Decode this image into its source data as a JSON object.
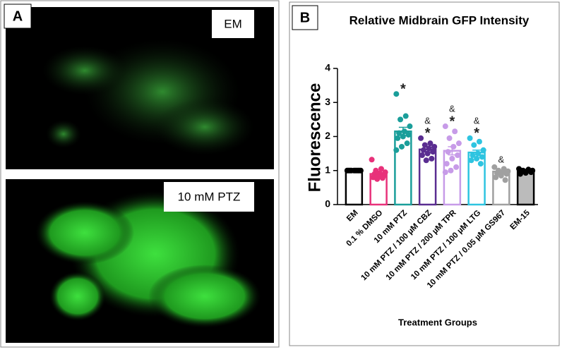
{
  "panel_a": {
    "label": "A",
    "images": [
      {
        "label": "EM"
      },
      {
        "label": "10 mM PTZ"
      }
    ]
  },
  "panel_b": {
    "label": "B"
  },
  "chart_data": {
    "type": "bar",
    "title": "Relative Midbrain GFP Intensity",
    "y_label": "Fluorescence",
    "x_label": "Treatment Groups",
    "categories": [
      "EM",
      "0.1 % DMSO",
      "10 mM PTZ",
      "10 mM PTZ / 100 µM CBZ",
      "10 mM PTZ / 200 µM TPR",
      "10 mM PTZ / 100 µM LTG",
      "10 mM PTZ / 0.05 µM GS967",
      "EM-15"
    ],
    "values": [
      1.0,
      0.9,
      2.15,
      1.62,
      1.58,
      1.53,
      0.97,
      0.97
    ],
    "errors": [
      0.02,
      0.04,
      0.12,
      0.07,
      0.12,
      0.07,
      0.03,
      0.03
    ],
    "colors": [
      "#000000",
      "#e8317a",
      "#1a9e9a",
      "#5a2d91",
      "#c79be8",
      "#2ec4e0",
      "#a0a0a0",
      "#000000"
    ],
    "fills": [
      "#ffffff",
      "#ffffff",
      "#ffffff",
      "#ffffff",
      "#ffffff",
      "#ffffff",
      "#ffffff",
      "#bbbbbb"
    ],
    "points": [
      [
        1.0,
        1.0,
        1.0,
        1.0,
        1.0,
        1.0,
        1.0,
        1.0,
        1.0,
        1.0
      ],
      [
        1.32,
        1.05,
        1.0,
        0.95,
        0.92,
        0.9,
        0.85,
        0.82,
        0.8,
        0.78,
        0.75
      ],
      [
        3.25,
        2.6,
        2.5,
        2.3,
        2.15,
        2.1,
        2.05,
        2.0,
        1.95,
        1.8,
        1.7,
        1.6
      ],
      [
        1.95,
        1.8,
        1.75,
        1.7,
        1.65,
        1.6,
        1.55,
        1.5,
        1.45,
        1.35,
        1.3
      ],
      [
        2.3,
        2.15,
        1.95,
        1.8,
        1.7,
        1.55,
        1.45,
        1.35,
        1.2,
        1.1,
        1.0,
        0.95
      ],
      [
        1.95,
        1.85,
        1.75,
        1.6,
        1.5,
        1.45,
        1.4,
        1.35,
        1.3,
        1.2
      ],
      [
        1.1,
        1.05,
        1.0,
        0.98,
        0.95,
        0.92,
        0.9,
        0.85,
        0.8,
        0.72
      ],
      [
        1.05,
        1.03,
        1.0,
        1.0,
        0.98,
        0.97,
        0.95,
        0.93,
        0.9
      ]
    ],
    "markers": [
      null,
      null,
      [
        "*"
      ],
      [
        "&",
        "*"
      ],
      [
        "&",
        "*"
      ],
      [
        "&",
        "*"
      ],
      [
        "&"
      ],
      null
    ],
    "ylim": [
      0,
      4
    ],
    "yticks": [
      0,
      1,
      2,
      3,
      4
    ],
    "grid": false
  }
}
